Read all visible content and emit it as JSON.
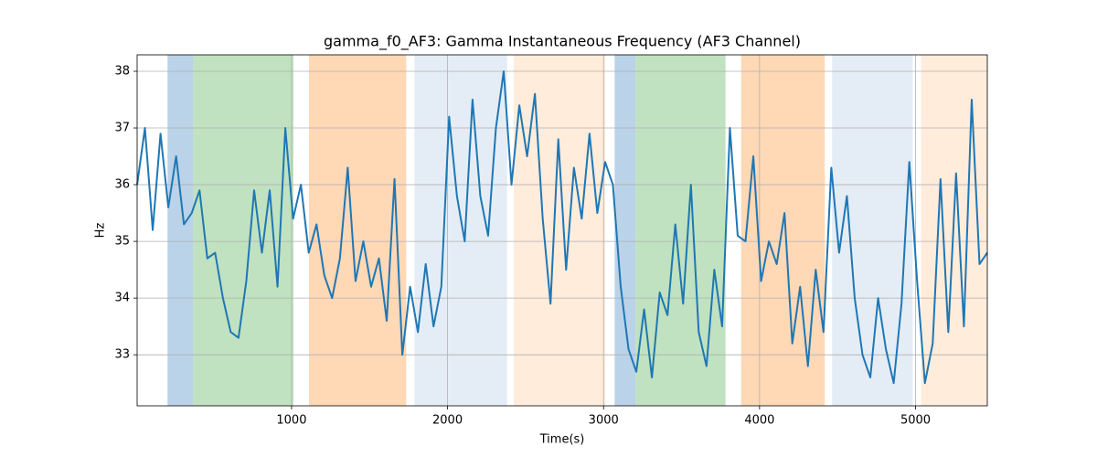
{
  "chart_data": {
    "type": "line",
    "title": "gamma_f0_AF3: Gamma Instantaneous Frequency (AF3 Channel)",
    "x_label": "Time(s)",
    "y_label": "Hz",
    "xlim": [
      10,
      5460
    ],
    "ylim": [
      32.1,
      38.29
    ],
    "xticks": [
      1000,
      2000,
      3000,
      4000,
      5000
    ],
    "yticks": [
      33,
      34,
      35,
      36,
      37,
      38
    ],
    "grid": true,
    "spans": [
      {
        "x0": 205,
        "x1": 370,
        "color": "#bad3e8"
      },
      {
        "x0": 370,
        "x1": 1012,
        "color": "#c0e2c0"
      },
      {
        "x0": 1112,
        "x1": 1735,
        "color": "#ffd8b6"
      },
      {
        "x0": 1788,
        "x1": 2382,
        "color": "#e4edf6"
      },
      {
        "x0": 2424,
        "x1": 3012,
        "color": "#ffecdb"
      },
      {
        "x0": 3071,
        "x1": 3206,
        "color": "#bad3e8"
      },
      {
        "x0": 3206,
        "x1": 3782,
        "color": "#c0e2c0"
      },
      {
        "x0": 3882,
        "x1": 4418,
        "color": "#ffd8b6"
      },
      {
        "x0": 4465,
        "x1": 4982,
        "color": "#e4edf6"
      },
      {
        "x0": 5035,
        "x1": 5460,
        "color": "#ffecdb"
      }
    ],
    "x": [
      10,
      60,
      110,
      160,
      210,
      260,
      310,
      360,
      410,
      460,
      510,
      560,
      610,
      660,
      710,
      760,
      810,
      860,
      910,
      960,
      1010,
      1060,
      1110,
      1160,
      1210,
      1260,
      1310,
      1360,
      1410,
      1460,
      1510,
      1560,
      1610,
      1660,
      1710,
      1760,
      1810,
      1860,
      1910,
      1960,
      2010,
      2060,
      2110,
      2160,
      2210,
      2260,
      2310,
      2360,
      2410,
      2460,
      2510,
      2560,
      2610,
      2660,
      2710,
      2760,
      2810,
      2860,
      2910,
      2960,
      3010,
      3060,
      3110,
      3160,
      3210,
      3260,
      3310,
      3360,
      3410,
      3460,
      3510,
      3560,
      3610,
      3660,
      3710,
      3760,
      3810,
      3860,
      3910,
      3960,
      4010,
      4060,
      4110,
      4160,
      4210,
      4260,
      4310,
      4360,
      4410,
      4460,
      4510,
      4560,
      4610,
      4660,
      4710,
      4760,
      4810,
      4860,
      4910,
      4960,
      5010,
      5060,
      5110,
      5160,
      5210,
      5260,
      5310,
      5360,
      5410,
      5460
    ],
    "series": [
      {
        "color": "#1f77b4",
        "values": [
          36.0,
          37.0,
          35.2,
          36.9,
          35.6,
          36.5,
          35.3,
          35.5,
          35.9,
          34.7,
          34.8,
          34.0,
          33.4,
          33.3,
          34.3,
          35.9,
          34.8,
          35.9,
          34.2,
          37.0,
          35.4,
          36.0,
          34.8,
          35.3,
          34.4,
          34.0,
          34.7,
          36.3,
          34.3,
          35.0,
          34.2,
          34.7,
          33.6,
          36.1,
          33.0,
          34.2,
          33.4,
          34.6,
          33.5,
          34.2,
          37.2,
          35.8,
          35.0,
          37.5,
          35.8,
          35.1,
          37.0,
          38.0,
          36.0,
          37.4,
          36.5,
          37.6,
          35.4,
          33.9,
          36.8,
          34.5,
          36.3,
          35.4,
          36.9,
          35.5,
          36.4,
          36.0,
          34.2,
          33.1,
          32.7,
          33.8,
          32.6,
          34.1,
          33.7,
          35.3,
          33.9,
          36.0,
          33.4,
          32.8,
          34.5,
          33.5,
          37.0,
          35.1,
          35.0,
          36.5,
          34.3,
          35.0,
          34.6,
          35.5,
          33.2,
          34.2,
          32.8,
          34.5,
          33.4,
          36.3,
          34.8,
          35.8,
          34.0,
          33.0,
          32.6,
          34.0,
          33.1,
          32.5,
          33.9,
          36.4,
          34.3,
          32.5,
          33.2,
          36.1,
          33.4,
          36.2,
          33.5,
          37.5,
          34.6,
          34.8
        ]
      }
    ]
  }
}
